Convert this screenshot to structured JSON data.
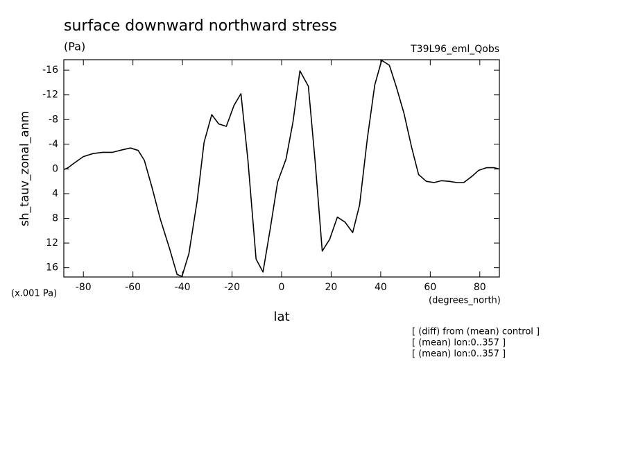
{
  "chart_data": {
    "type": "line",
    "title": "surface downward northward stress",
    "subtitle": "(Pa)",
    "run_label": "T39L96_eml_Qobs",
    "ylabel": "sh_tauv_zonal_anm",
    "y_unit_label": "(x.001 Pa)",
    "x_unit_label": "(degrees_north)",
    "xlabel": "lat",
    "notes": [
      "[ (diff) from (mean) control ]",
      "[ (mean) lon:0..357 ]",
      "[ (mean) lon:0..357 ]"
    ],
    "xlim": [
      -87.9,
      87.9
    ],
    "ylim": [
      17.5,
      -17.7
    ],
    "xticks": [
      -80,
      -60,
      -40,
      -20,
      0,
      20,
      40,
      60,
      80
    ],
    "yticks": [
      -16,
      -12,
      -8,
      -4,
      0,
      4,
      8,
      12,
      16
    ],
    "color": "#000000",
    "x": [
      -87.9,
      -86.2,
      -83.9,
      -80,
      -76.1,
      -72.2,
      -68.2,
      -64.3,
      -61.0,
      -57.9,
      -55.4,
      -52.3,
      -48.9,
      -45.3,
      -42.2,
      -40.2,
      -37.4,
      -34.1,
      -31.3,
      -28.2,
      -25.4,
      -22.3,
      -19.2,
      -16.4,
      -13.6,
      -10.3,
      -7.5,
      -4.6,
      -1.6,
      1.8,
      4.6,
      7.4,
      10.8,
      13.6,
      16.4,
      19.4,
      22.5,
      25.6,
      28.7,
      31.5,
      34.6,
      37.6,
      40.4,
      43.5,
      46.3,
      49.4,
      52.5,
      55.3,
      58.4,
      61.5,
      64.5,
      67.6,
      70.7,
      73.5,
      76.8,
      79.6,
      82.7,
      85.8,
      87.8
    ],
    "values": [
      0.1,
      -0.2,
      -0.9,
      -2.0,
      -2.5,
      -2.7,
      -2.7,
      -3.1,
      -3.4,
      -3.0,
      -1.4,
      3.0,
      8.2,
      12.8,
      17.1,
      17.4,
      13.7,
      5.2,
      -4.3,
      -8.8,
      -7.3,
      -6.9,
      -10.3,
      -12.2,
      -1.5,
      14.6,
      16.7,
      9.7,
      2.1,
      -1.6,
      -7.6,
      -15.9,
      -13.4,
      -0.9,
      13.3,
      11.4,
      7.8,
      8.6,
      10.3,
      5.8,
      -4.9,
      -13.6,
      -17.6,
      -16.8,
      -13.3,
      -9.0,
      -3.5,
      0.9,
      2.0,
      2.2,
      1.9,
      2.0,
      2.2,
      2.2,
      1.2,
      0.2,
      -0.2,
      -0.2,
      0.0
    ]
  }
}
